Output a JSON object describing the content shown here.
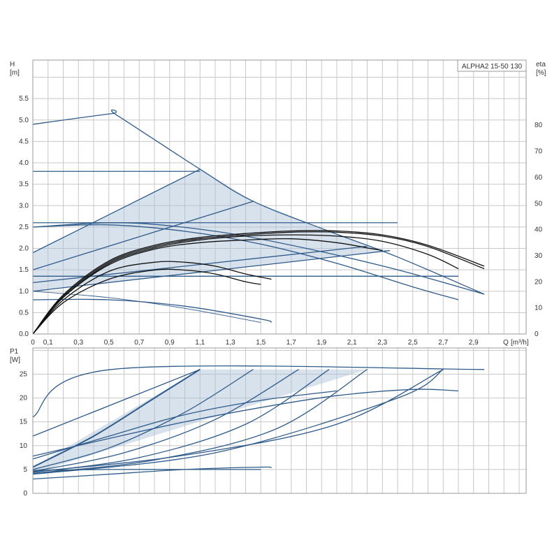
{
  "model_label": "ALPHA2 15-50 130",
  "chart_data": [
    {
      "type": "line",
      "ylabel": "H",
      "yunit": "[m]",
      "y2label": "eta",
      "y2unit": "[%]",
      "xlabel": "Q",
      "xunit": "[m³/h]",
      "xlim": [
        0,
        3.2
      ],
      "ylim": [
        0,
        6.0
      ],
      "y2lim": [
        0,
        100
      ],
      "grid": true,
      "x_ticks": [
        0,
        0.1,
        0.3,
        0.5,
        0.7,
        0.9,
        1.1,
        1.3,
        1.5,
        1.7,
        1.9,
        2.1,
        2.3,
        2.5,
        2.7,
        2.9
      ],
      "x_tick_labels": [
        "0",
        "0,1",
        "0,3",
        "0,5",
        "0,7",
        "0,9",
        "1,1",
        "1,3",
        "1,5",
        "1,7",
        "1,9",
        "2,1",
        "2,3",
        "2,5",
        "2,7",
        "2,9"
      ],
      "y_ticks": [
        0,
        0.5,
        1.0,
        1.5,
        2.0,
        2.5,
        3.0,
        3.5,
        4.0,
        4.5,
        5.0,
        5.5
      ],
      "y_tick_labels": [
        "0.0",
        "0.5",
        "1.0",
        "1.5",
        "2.0",
        "2.5",
        "3.0",
        "3.5",
        "4.0",
        "4.5",
        "5.0",
        "5.5"
      ],
      "y2_ticks": [
        0,
        10,
        20,
        30,
        40,
        50,
        60,
        70,
        80
      ],
      "y2_tick_labels": [
        "0",
        "10",
        "20",
        "30",
        "40",
        "50",
        "60",
        "70",
        "80"
      ],
      "shaded_regions": [
        {
          "points": [
            [
              0,
              1.9
            ],
            [
              1.1,
              3.85
            ],
            [
              1.45,
              3.1
            ],
            [
              1.95,
              2.4
            ],
            [
              2.2,
              2.05
            ],
            [
              0,
              1.2
            ]
          ]
        },
        {
          "points": [
            [
              0,
              1.2
            ],
            [
              2.2,
              2.05
            ],
            [
              2.35,
              1.95
            ],
            [
              0,
              1.0
            ]
          ]
        }
      ],
      "series": [
        {
          "style": "pump",
          "x": [
            0,
            0.52,
            0.55,
            1.1,
            1.45,
            1.95,
            2.4,
            2.97
          ],
          "y": [
            4.9,
            5.15,
            5.12,
            3.85,
            3.1,
            2.4,
            1.8,
            0.93
          ]
        },
        {
          "style": "pump",
          "x": [
            0,
            1.1
          ],
          "y": [
            3.8,
            3.8
          ]
        },
        {
          "style": "pump",
          "x": [
            0,
            1.1
          ],
          "y": [
            1.9,
            3.85
          ]
        },
        {
          "style": "pump",
          "x": [
            0,
            1.45
          ],
          "y": [
            1.5,
            3.1
          ]
        },
        {
          "style": "pump",
          "x": [
            0,
            2.4
          ],
          "y": [
            2.6,
            2.6
          ]
        },
        {
          "style": "pump",
          "x": [
            0,
            0.6,
            1.2,
            1.8,
            2.4,
            2.97
          ],
          "y": [
            2.5,
            2.6,
            2.4,
            2.0,
            1.5,
            0.93
          ]
        },
        {
          "style": "pump",
          "x": [
            0,
            0.5,
            1.0,
            1.5,
            2.0,
            2.5,
            2.8
          ],
          "y": [
            2.5,
            2.55,
            2.4,
            2.1,
            1.65,
            1.1,
            0.8
          ]
        },
        {
          "style": "pump",
          "x": [
            0,
            2.2
          ],
          "y": [
            1.2,
            2.05
          ]
        },
        {
          "style": "pump",
          "x": [
            0,
            2.35
          ],
          "y": [
            1.0,
            1.95
          ]
        },
        {
          "style": "pump",
          "x": [
            0,
            2.8
          ],
          "y": [
            1.35,
            1.35
          ]
        },
        {
          "style": "pump",
          "x": [
            0,
            0.5,
            1.0,
            1.5,
            1.57
          ],
          "y": [
            0.8,
            0.8,
            0.65,
            0.35,
            0.27
          ]
        },
        {
          "style": "pump-thin",
          "x": [
            0,
            0.5,
            1.0,
            1.5
          ],
          "y": [
            1.0,
            0.85,
            0.6,
            0.27
          ]
        },
        {
          "style": "eff",
          "x": [
            0,
            0.2,
            0.5,
            0.8,
            1.1,
            1.4,
            1.7,
            2.0,
            2.3,
            2.6,
            2.97
          ],
          "y": [
            0,
            15,
            28,
            34,
            37,
            38.5,
            39.5,
            39.5,
            38,
            34,
            26
          ]
        },
        {
          "style": "eff",
          "x": [
            0,
            0.2,
            0.5,
            0.8,
            1.1,
            1.4,
            1.7,
            2.0,
            2.3,
            2.6,
            2.97
          ],
          "y": [
            0,
            14.5,
            27.5,
            33.5,
            36.5,
            38,
            39,
            39,
            37.5,
            33.5,
            25
          ]
        },
        {
          "style": "eff",
          "x": [
            0,
            0.2,
            0.5,
            0.8,
            1.1,
            1.4,
            1.7,
            2.0,
            2.3,
            2.6,
            2.8
          ],
          "y": [
            0,
            14,
            27,
            33,
            36,
            37.5,
            38,
            37.5,
            35.5,
            30.5,
            25
          ]
        },
        {
          "style": "eff",
          "x": [
            0,
            0.2,
            0.5,
            0.8,
            1.1,
            1.4,
            1.7,
            2.0,
            2.2,
            2.3
          ],
          "y": [
            0,
            14,
            26.5,
            32.5,
            35,
            36,
            36.5,
            35,
            33,
            32
          ]
        },
        {
          "style": "eff",
          "x": [
            0,
            0.2,
            0.5,
            0.8,
            1.0,
            1.2,
            1.4,
            1.57
          ],
          "y": [
            0,
            13,
            24,
            27.5,
            27.5,
            26,
            23,
            21
          ]
        },
        {
          "style": "eff",
          "x": [
            0,
            0.2,
            0.5,
            0.8,
            1.0,
            1.2,
            1.4,
            1.5
          ],
          "y": [
            0,
            12,
            21,
            24.5,
            24.5,
            23,
            20,
            19
          ]
        }
      ]
    },
    {
      "type": "line",
      "ylabel": "P1",
      "yunit": "[W]",
      "xlim": [
        0,
        3.2
      ],
      "ylim": [
        0,
        30
      ],
      "grid": true,
      "y_ticks": [
        0,
        5,
        10,
        15,
        20,
        25
      ],
      "y_tick_labels": [
        "0",
        "5",
        "10",
        "15",
        "20",
        "25"
      ],
      "shaded_regions": [
        {
          "points": [
            [
              0,
              5.5
            ],
            [
              1.1,
              26
            ],
            [
              2.2,
              26
            ],
            [
              0,
              4.2
            ]
          ]
        }
      ],
      "series": [
        {
          "style": "pump",
          "x": [
            0,
            0.52,
            2.97
          ],
          "y": [
            16,
            26,
            26
          ]
        },
        {
          "style": "pump",
          "x": [
            0,
            1.1
          ],
          "y": [
            12,
            26
          ]
        },
        {
          "style": "pump-thick",
          "x": [
            0,
            0.4,
            0.8,
            1.1
          ],
          "y": [
            5.5,
            12,
            20,
            26
          ]
        },
        {
          "style": "pump",
          "x": [
            0,
            0.5,
            1.0,
            1.45
          ],
          "y": [
            5.0,
            9.5,
            17,
            26
          ]
        },
        {
          "style": "pump",
          "x": [
            0,
            0.6,
            1.2,
            1.75
          ],
          "y": [
            4.6,
            8.5,
            15.5,
            26
          ]
        },
        {
          "style": "pump",
          "x": [
            0,
            0.7,
            1.4,
            1.95
          ],
          "y": [
            4.4,
            7.5,
            14.5,
            26
          ]
        },
        {
          "style": "pump",
          "x": [
            0,
            0.8,
            1.6,
            2.2
          ],
          "y": [
            4.2,
            7.0,
            13.5,
            26
          ]
        },
        {
          "style": "pump",
          "x": [
            0,
            1.0,
            2.0,
            2.7
          ],
          "y": [
            4.5,
            8.0,
            14.5,
            26
          ]
        },
        {
          "style": "pump",
          "x": [
            0,
            1.2,
            2.4,
            2.7
          ],
          "y": [
            4.0,
            8.5,
            20,
            26
          ]
        },
        {
          "style": "pump",
          "x": [
            0,
            0.5,
            1.0,
            1.5,
            2.0,
            2.5,
            2.8
          ],
          "y": [
            7.8,
            11.5,
            15,
            18,
            20.5,
            21.8,
            21.5
          ]
        },
        {
          "style": "pump",
          "x": [
            0,
            0.5,
            1.0,
            1.5,
            2.0
          ],
          "y": [
            7.2,
            12,
            16.5,
            19.5,
            21.5
          ]
        },
        {
          "style": "pump",
          "x": [
            0,
            0.5,
            1.0,
            1.5,
            1.57
          ],
          "y": [
            3.0,
            4.0,
            5.0,
            5.5,
            5.4
          ]
        },
        {
          "style": "pump",
          "x": [
            0,
            0.5,
            1.0,
            1.5
          ],
          "y": [
            4.8,
            5.0,
            5.0,
            5.0
          ]
        }
      ]
    }
  ]
}
